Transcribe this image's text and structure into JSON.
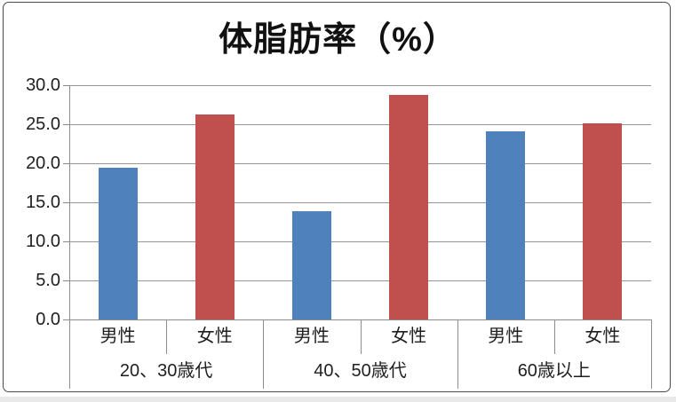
{
  "chart_data": {
    "type": "bar",
    "title": "体脂肪率（%）",
    "categories": [
      "20、30歳代",
      "40、50歳代",
      "60歳以上"
    ],
    "series": [
      {
        "name": "男性",
        "color": "#4F81BD",
        "values": [
          19.4,
          13.9,
          24.1
        ]
      },
      {
        "name": "女性",
        "color": "#C0504D",
        "values": [
          26.3,
          28.7,
          25.1
        ]
      }
    ],
    "y_ticks": [
      "30.0",
      "25.0",
      "20.0",
      "15.0",
      "10.0",
      "5.0",
      "0.0"
    ],
    "ylim": [
      0,
      30
    ],
    "xlabel": "",
    "ylabel": "",
    "grid": true,
    "legend_position": "none",
    "colors": {
      "male_bar": "#4F81BD",
      "female_bar": "#C0504D",
      "gridline": "#969696",
      "axis": "#8c8c8c",
      "text": "#1f1f1f",
      "frame_border": "#4a4a4a"
    }
  }
}
